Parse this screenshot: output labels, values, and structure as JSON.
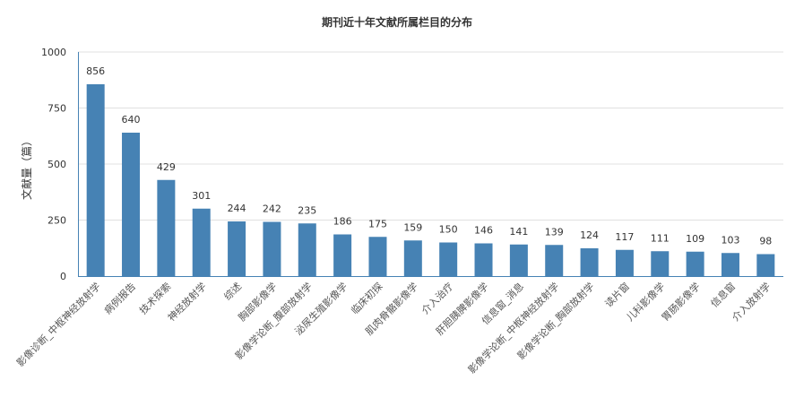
{
  "chart_data": {
    "type": "bar",
    "title": "期刊近十年文献所属栏目的分布",
    "ylabel": "文献量（篇）",
    "xlabel": "",
    "ylim": [
      0,
      1000
    ],
    "yticks": [
      0,
      250,
      500,
      750,
      1000
    ],
    "grid": true,
    "bar_color": "#4682B4",
    "categories": [
      "影像诊断_中枢神经放射学",
      "病例报告",
      "技术探索",
      "神经放射学",
      "综述",
      "胸部影像学",
      "影像学论断_腹部放射学",
      "泌尿生殖影像学",
      "临床初探",
      "肌肉骨骼影像学",
      "介入治疗",
      "肝胆胰脾影像学",
      "信息窗_消息",
      "影像学论断_中枢神经放射学",
      "影像学论断_胸部放射学",
      "读片窗",
      "儿科影像学",
      "胃肠影像学",
      "信息窗",
      "介入放射学"
    ],
    "values": [
      856,
      640,
      429,
      301,
      244,
      242,
      235,
      186,
      175,
      159,
      150,
      146,
      141,
      139,
      124,
      117,
      111,
      109,
      103,
      98
    ]
  }
}
